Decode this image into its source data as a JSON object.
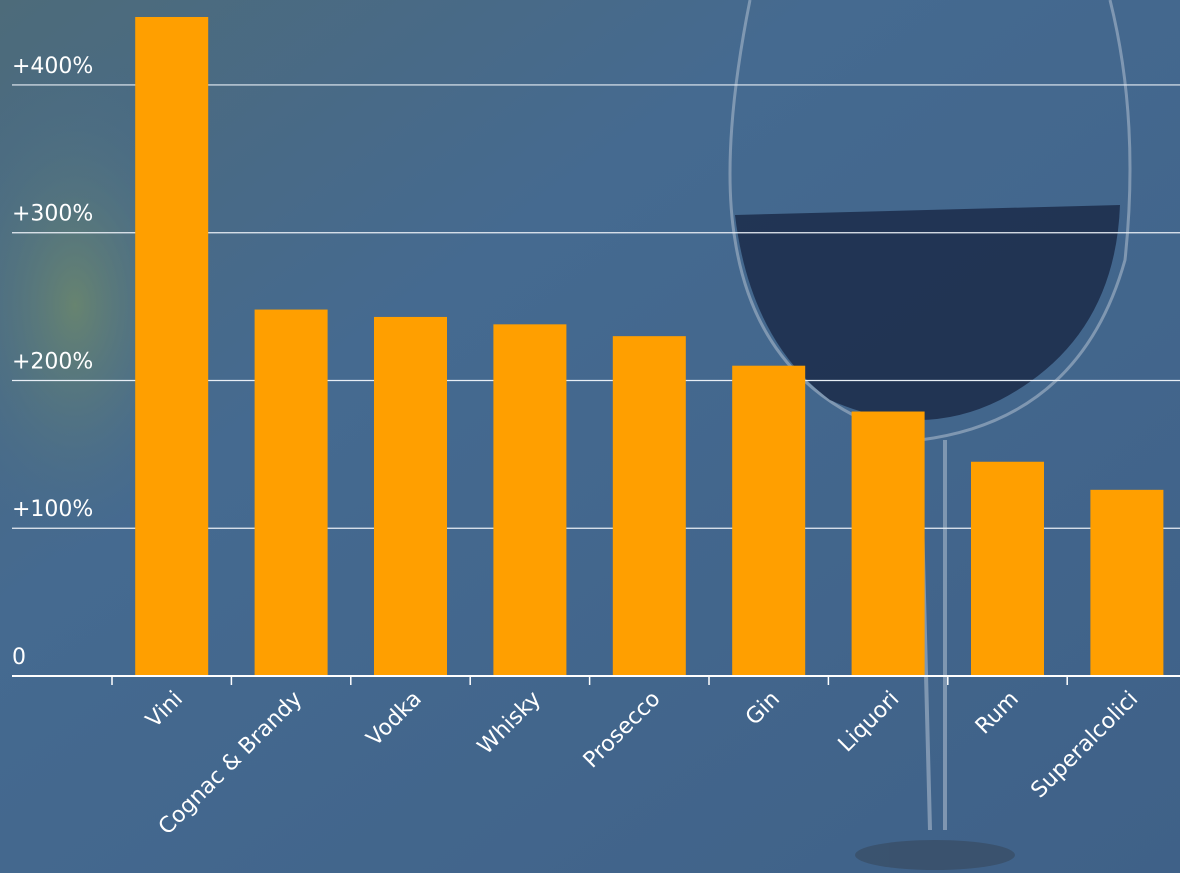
{
  "chart_data": {
    "type": "bar",
    "categories": [
      "Vini",
      "Cognac & Brandy",
      "Vodka",
      "Whisky",
      "Prosecco",
      "Gin",
      "Liquori",
      "Rum",
      "Superalcolici"
    ],
    "values": [
      446,
      248,
      243,
      238,
      230,
      210,
      179,
      145,
      126
    ],
    "color": "#ff9f00",
    "ylim": [
      0,
      457.5
    ],
    "yticks": [
      0,
      {
        "value": 100,
        "label": "+100%"
      },
      {
        "value": 200,
        "label": "+200%"
      },
      {
        "value": 300,
        "label": "+300%"
      },
      {
        "value": 400,
        "label": "+400%"
      }
    ],
    "grid": true
  }
}
